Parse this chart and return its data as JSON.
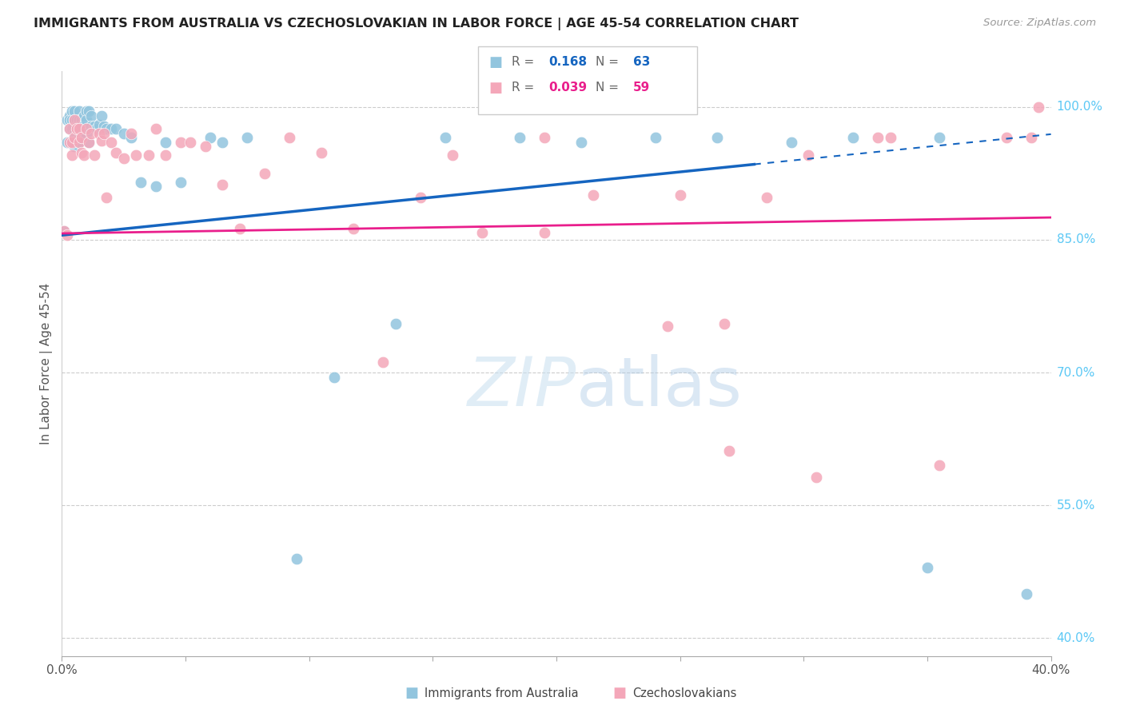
{
  "title": "IMMIGRANTS FROM AUSTRALIA VS CZECHOSLOVAKIAN IN LABOR FORCE | AGE 45-54 CORRELATION CHART",
  "source": "Source: ZipAtlas.com",
  "ylabel": "In Labor Force | Age 45-54",
  "xlim": [
    0.0,
    0.4
  ],
  "ylim": [
    0.38,
    1.04
  ],
  "xtick_positions": [
    0.0,
    0.05,
    0.1,
    0.15,
    0.2,
    0.25,
    0.3,
    0.35,
    0.4
  ],
  "xticklabels": [
    "0.0%",
    "",
    "",
    "",
    "",
    "",
    "",
    "",
    "40.0%"
  ],
  "ytick_positions": [
    0.4,
    0.55,
    0.7,
    0.85,
    1.0
  ],
  "yticklabels_right": [
    "40.0%",
    "55.0%",
    "70.0%",
    "85.0%",
    "100.0%"
  ],
  "color_australia": "#92c5de",
  "color_czech": "#f4a7b9",
  "color_trend_australia": "#1565c0",
  "color_trend_czech": "#e91e8c",
  "watermark_color": "#ddeeff",
  "australia_x": [
    0.001,
    0.002,
    0.002,
    0.003,
    0.003,
    0.003,
    0.004,
    0.004,
    0.004,
    0.004,
    0.005,
    0.005,
    0.005,
    0.005,
    0.006,
    0.006,
    0.006,
    0.007,
    0.007,
    0.007,
    0.007,
    0.008,
    0.008,
    0.008,
    0.009,
    0.009,
    0.01,
    0.01,
    0.01,
    0.011,
    0.011,
    0.012,
    0.012,
    0.013,
    0.014,
    0.015,
    0.016,
    0.017,
    0.018,
    0.02,
    0.022,
    0.025,
    0.028,
    0.032,
    0.038,
    0.042,
    0.048,
    0.06,
    0.065,
    0.075,
    0.095,
    0.11,
    0.135,
    0.155,
    0.185,
    0.21,
    0.24,
    0.265,
    0.295,
    0.32,
    0.35,
    0.355,
    0.39
  ],
  "australia_y": [
    0.86,
    0.985,
    0.96,
    0.99,
    0.985,
    0.975,
    0.995,
    0.985,
    0.975,
    0.96,
    0.995,
    0.985,
    0.97,
    0.955,
    0.985,
    0.978,
    0.962,
    0.995,
    0.985,
    0.978,
    0.96,
    0.985,
    0.978,
    0.965,
    0.99,
    0.97,
    0.995,
    0.985,
    0.97,
    0.995,
    0.96,
    0.99,
    0.978,
    0.978,
    0.975,
    0.98,
    0.99,
    0.978,
    0.975,
    0.975,
    0.975,
    0.97,
    0.965,
    0.915,
    0.91,
    0.96,
    0.915,
    0.965,
    0.96,
    0.965,
    0.49,
    0.695,
    0.755,
    0.965,
    0.965,
    0.96,
    0.965,
    0.965,
    0.96,
    0.965,
    0.48,
    0.965,
    0.45
  ],
  "czech_x": [
    0.001,
    0.002,
    0.003,
    0.003,
    0.004,
    0.004,
    0.005,
    0.005,
    0.006,
    0.007,
    0.007,
    0.008,
    0.008,
    0.009,
    0.01,
    0.011,
    0.012,
    0.013,
    0.015,
    0.016,
    0.017,
    0.018,
    0.02,
    0.022,
    0.025,
    0.028,
    0.03,
    0.035,
    0.038,
    0.042,
    0.048,
    0.052,
    0.058,
    0.065,
    0.072,
    0.082,
    0.092,
    0.105,
    0.118,
    0.13,
    0.145,
    0.158,
    0.17,
    0.195,
    0.215,
    0.245,
    0.27,
    0.305,
    0.33,
    0.355,
    0.382,
    0.395,
    0.25,
    0.268,
    0.285,
    0.195,
    0.302,
    0.335,
    0.392
  ],
  "czech_y": [
    0.86,
    0.855,
    0.975,
    0.96,
    0.96,
    0.945,
    0.985,
    0.965,
    0.975,
    0.975,
    0.96,
    0.965,
    0.948,
    0.945,
    0.975,
    0.96,
    0.97,
    0.945,
    0.97,
    0.962,
    0.97,
    0.898,
    0.96,
    0.948,
    0.942,
    0.97,
    0.945,
    0.945,
    0.975,
    0.945,
    0.96,
    0.96,
    0.955,
    0.912,
    0.862,
    0.925,
    0.965,
    0.948,
    0.862,
    0.712,
    0.898,
    0.945,
    0.858,
    0.965,
    0.9,
    0.752,
    0.612,
    0.582,
    0.965,
    0.595,
    0.965,
    1.0,
    0.9,
    0.755,
    0.898,
    0.858,
    0.945,
    0.965,
    0.965
  ],
  "trend_aus_x0": 0.0,
  "trend_aus_y0": 0.855,
  "trend_aus_x1_solid": 0.28,
  "trend_aus_y1_solid": 0.935,
  "trend_aus_x1_dash": 0.4,
  "trend_aus_y1_dash": 0.969,
  "trend_cze_x0": 0.0,
  "trend_cze_y0": 0.857,
  "trend_cze_x1": 0.4,
  "trend_cze_y1": 0.875
}
